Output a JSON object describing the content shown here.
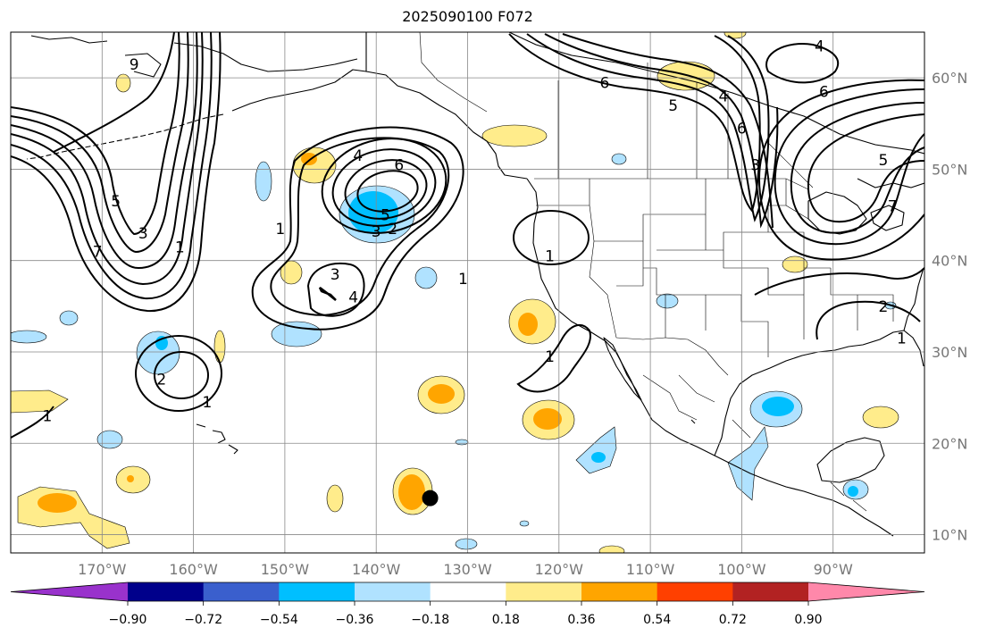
{
  "title": "2025090100 F072",
  "map": {
    "projection": "equirectangular",
    "lon_range": [
      -180,
      -80
    ],
    "lat_range": [
      8,
      65
    ],
    "lon_grid": [
      -170,
      -160,
      -150,
      -140,
      -130,
      -120,
      -110,
      -100,
      -90
    ],
    "lat_grid": [
      10,
      20,
      30,
      40,
      50,
      60
    ],
    "lon_labels": [
      "170°W",
      "160°W",
      "150°W",
      "140°W",
      "130°W",
      "120°W",
      "110°W",
      "100°W",
      "90°W"
    ],
    "lat_labels": [
      "10°N",
      "20°N",
      "30°N",
      "40°N",
      "50°N",
      "60°N"
    ],
    "marker": {
      "lon": -134.1,
      "lat": 14.0,
      "label": "storm-position"
    }
  },
  "colorbar": {
    "tick_labels": [
      "−0.90",
      "−0.72",
      "−0.54",
      "−0.36",
      "−0.18",
      "0.18",
      "0.36",
      "0.54",
      "0.72",
      "0.90"
    ],
    "colors": [
      "#9932cc",
      "#00008b",
      "#3a5fcd",
      "#00bfff",
      "#b0e2ff",
      "#ffffff",
      "#ffec8b",
      "#ffa500",
      "#ff4000",
      "#b22222",
      "#ff88aa"
    ],
    "extend": "both"
  },
  "contour_labels": [
    {
      "text": "1",
      "lon": -161.5,
      "lat": 41.5
    },
    {
      "text": "3",
      "lon": -165.5,
      "lat": 43.0
    },
    {
      "text": "5",
      "lon": -168.5,
      "lat": 46.5
    },
    {
      "text": "7",
      "lon": -170.5,
      "lat": 41.0
    },
    {
      "text": "9",
      "lon": -166.5,
      "lat": 61.5
    },
    {
      "text": "4",
      "lon": -142.0,
      "lat": 51.5
    },
    {
      "text": "6",
      "lon": -137.5,
      "lat": 50.5
    },
    {
      "text": "5",
      "lon": -139.0,
      "lat": 45.0
    },
    {
      "text": "2",
      "lon": -138.2,
      "lat": 43.5
    },
    {
      "text": "3",
      "lon": -140.0,
      "lat": 43.2
    },
    {
      "text": "1",
      "lon": -150.5,
      "lat": 43.5
    },
    {
      "text": "3",
      "lon": -144.5,
      "lat": 38.5
    },
    {
      "text": "4",
      "lon": -142.5,
      "lat": 36.0
    },
    {
      "text": "1",
      "lon": -130.5,
      "lat": 38.0
    },
    {
      "text": "1",
      "lon": -121.0,
      "lat": 40.5
    },
    {
      "text": "1",
      "lon": -121.0,
      "lat": 29.5
    },
    {
      "text": "2",
      "lon": -163.5,
      "lat": 27.0
    },
    {
      "text": "1",
      "lon": -158.5,
      "lat": 24.5
    },
    {
      "text": "1",
      "lon": -176.0,
      "lat": 23.0
    },
    {
      "text": "6",
      "lon": -115.0,
      "lat": 59.5
    },
    {
      "text": "5",
      "lon": -107.5,
      "lat": 57.0
    },
    {
      "text": "4",
      "lon": -102.0,
      "lat": 58.0
    },
    {
      "text": "3",
      "lon": -98.5,
      "lat": 50.5
    },
    {
      "text": "6",
      "lon": -100.0,
      "lat": 54.5
    },
    {
      "text": "4",
      "lon": -91.5,
      "lat": 63.5
    },
    {
      "text": "6",
      "lon": -91.0,
      "lat": 58.5
    },
    {
      "text": "5",
      "lon": -84.5,
      "lat": 51.0
    },
    {
      "text": "7",
      "lon": -83.5,
      "lat": 46.0
    },
    {
      "text": "2",
      "lon": -84.5,
      "lat": 35.0
    },
    {
      "text": "1",
      "lon": -82.5,
      "lat": 31.5
    }
  ]
}
